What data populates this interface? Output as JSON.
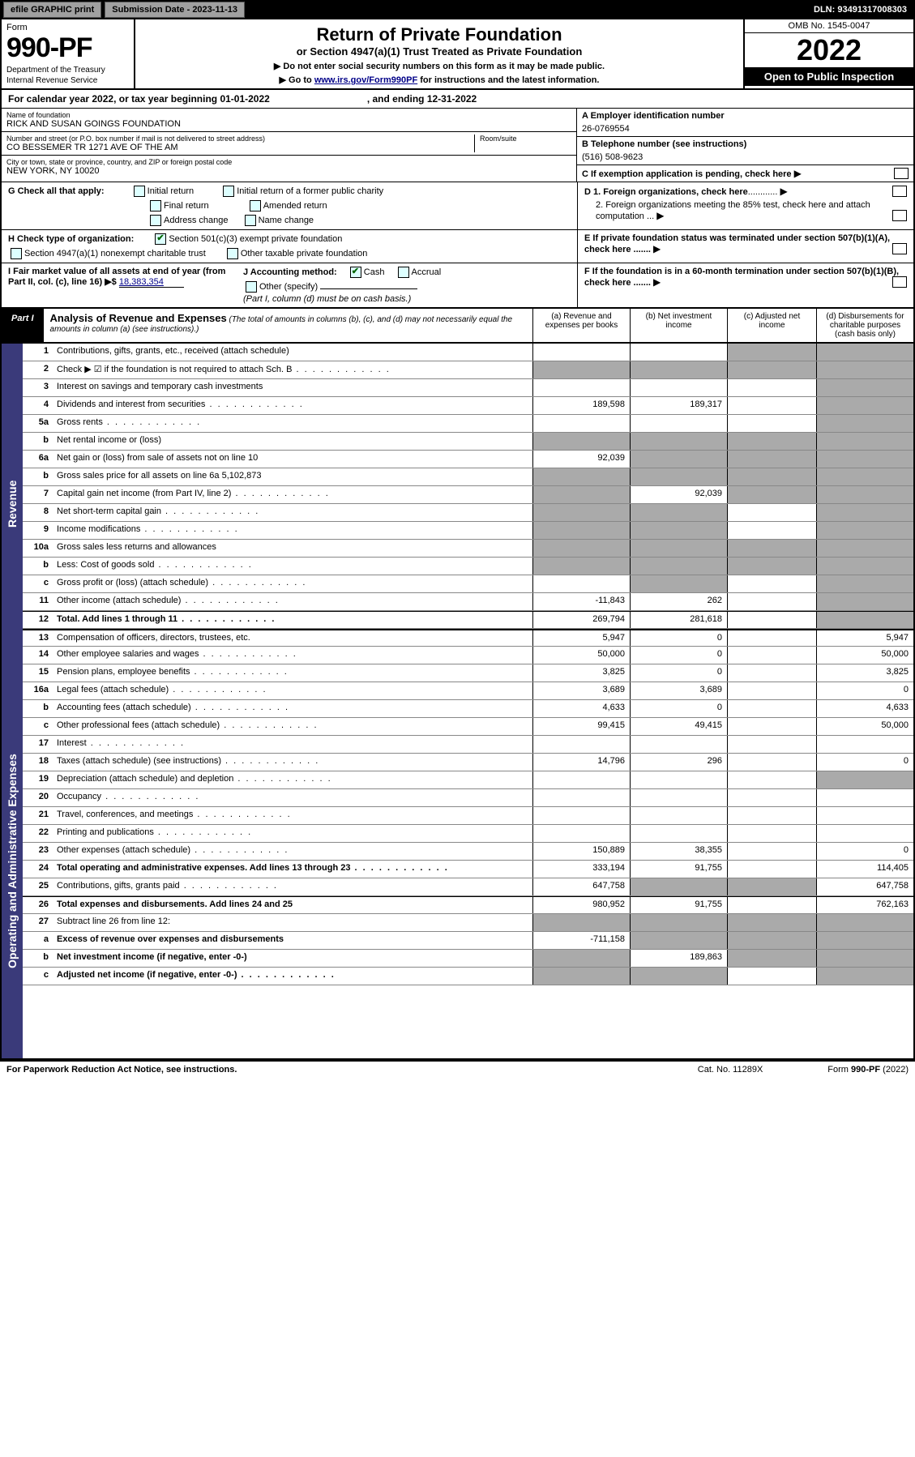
{
  "topbar": {
    "efile_btn": "efile GRAPHIC print",
    "submission_label": "Submission Date - 2023-11-13",
    "dln": "DLN: 93491317008303"
  },
  "header": {
    "form_word": "Form",
    "form_number": "990-PF",
    "dept1": "Department of the Treasury",
    "dept2": "Internal Revenue Service",
    "title": "Return of Private Foundation",
    "subtitle": "or Section 4947(a)(1) Trust Treated as Private Foundation",
    "note1": "▶ Do not enter social security numbers on this form as it may be made public.",
    "note2_pre": "▶ Go to ",
    "note2_link": "www.irs.gov/Form990PF",
    "note2_post": " for instructions and the latest information.",
    "omb": "OMB No. 1545-0047",
    "year": "2022",
    "open": "Open to Public Inspection"
  },
  "cal_year": {
    "text": "For calendar year 2022, or tax year beginning 01-01-2022",
    "ending": ", and ending 12-31-2022"
  },
  "id_block": {
    "name_label": "Name of foundation",
    "name": "RICK AND SUSAN GOINGS FOUNDATION",
    "addr_label": "Number and street (or P.O. box number if mail is not delivered to street address)",
    "room_label": "Room/suite",
    "addr": "CO BESSEMER TR 1271 AVE OF THE AM",
    "city_label": "City or town, state or province, country, and ZIP or foreign postal code",
    "city": "NEW YORK, NY  10020",
    "a_label": "A Employer identification number",
    "a_val": "26-0769554",
    "b_label": "B Telephone number (see instructions)",
    "b_val": "(516) 508-9623",
    "c_label": "C If exemption application is pending, check here",
    "d1": "D 1. Foreign organizations, check here",
    "d2": "2. Foreign organizations meeting the 85% test, check here and attach computation ...",
    "e": "E  If private foundation status was terminated under section 507(b)(1)(A), check here .......",
    "f": "F  If the foundation is in a 60-month termination under section 507(b)(1)(B), check here ......."
  },
  "checks": {
    "g_label": "G Check all that apply:",
    "g_opts": [
      "Initial return",
      "Initial return of a former public charity",
      "Final return",
      "Amended return",
      "Address change",
      "Name change"
    ],
    "h_label": "H Check type of organization:",
    "h_opt1": "Section 501(c)(3) exempt private foundation",
    "h_opt2": "Section 4947(a)(1) nonexempt charitable trust",
    "h_opt3": "Other taxable private foundation",
    "i_label": "I Fair market value of all assets at end of year (from Part II, col. (c), line 16) ▶$ ",
    "i_val": "18,383,354",
    "j_label": "J Accounting method:",
    "j_cash": "Cash",
    "j_accrual": "Accrual",
    "j_other": "Other (specify)",
    "j_note": "(Part I, column (d) must be on cash basis.)"
  },
  "part1": {
    "label": "Part I",
    "title": "Analysis of Revenue and Expenses",
    "desc": " (The total of amounts in columns (b), (c), and (d) may not necessarily equal the amounts in column (a) (see instructions).)",
    "col_a": "(a)   Revenue and expenses per books",
    "col_b": "(b)   Net investment income",
    "col_c": "(c)   Adjusted net income",
    "col_d": "(d)   Disbursements for charitable purposes (cash basis only)"
  },
  "side_rev": "Revenue",
  "side_exp": "Operating and Administrative Expenses",
  "rows": [
    {
      "n": "1",
      "t": "Contributions, gifts, grants, etc., received (attach schedule)",
      "a": "",
      "b": "",
      "c": "s",
      "d": "s"
    },
    {
      "n": "2",
      "t": "Check ▶ ☑ if the foundation is not required to attach Sch. B",
      "a": "s",
      "b": "s",
      "c": "s",
      "d": "s",
      "dots": true
    },
    {
      "n": "3",
      "t": "Interest on savings and temporary cash investments",
      "a": "",
      "b": "",
      "c": "",
      "d": "s"
    },
    {
      "n": "4",
      "t": "Dividends and interest from securities",
      "a": "189,598",
      "b": "189,317",
      "c": "",
      "d": "s",
      "dots": true
    },
    {
      "n": "5a",
      "t": "Gross rents",
      "a": "",
      "b": "",
      "c": "",
      "d": "s",
      "dots": true
    },
    {
      "n": "b",
      "t": "Net rental income or (loss)",
      "a": "s",
      "b": "s",
      "c": "s",
      "d": "s"
    },
    {
      "n": "6a",
      "t": "Net gain or (loss) from sale of assets not on line 10",
      "a": "92,039",
      "b": "s",
      "c": "s",
      "d": "s"
    },
    {
      "n": "b",
      "t": "Gross sales price for all assets on line 6a          5,102,873",
      "a": "s",
      "b": "s",
      "c": "s",
      "d": "s"
    },
    {
      "n": "7",
      "t": "Capital gain net income (from Part IV, line 2)",
      "a": "s",
      "b": "92,039",
      "c": "s",
      "d": "s",
      "dots": true
    },
    {
      "n": "8",
      "t": "Net short-term capital gain",
      "a": "s",
      "b": "s",
      "c": "",
      "d": "s",
      "dots": true
    },
    {
      "n": "9",
      "t": "Income modifications",
      "a": "s",
      "b": "s",
      "c": "",
      "d": "s",
      "dots": true
    },
    {
      "n": "10a",
      "t": "Gross sales less returns and allowances",
      "a": "s",
      "b": "s",
      "c": "s",
      "d": "s"
    },
    {
      "n": "b",
      "t": "Less: Cost of goods sold",
      "a": "s",
      "b": "s",
      "c": "s",
      "d": "s",
      "dots": true
    },
    {
      "n": "c",
      "t": "Gross profit or (loss) (attach schedule)",
      "a": "",
      "b": "s",
      "c": "",
      "d": "s",
      "dots": true
    },
    {
      "n": "11",
      "t": "Other income (attach schedule)",
      "a": "-11,843",
      "b": "262",
      "c": "",
      "d": "s",
      "dots": true
    },
    {
      "n": "12",
      "t": "Total. Add lines 1 through 11",
      "a": "269,794",
      "b": "281,618",
      "c": "",
      "d": "s",
      "dots": true,
      "bold": true
    },
    {
      "n": "13",
      "t": "Compensation of officers, directors, trustees, etc.",
      "a": "5,947",
      "b": "0",
      "c": "",
      "d": "5,947"
    },
    {
      "n": "14",
      "t": "Other employee salaries and wages",
      "a": "50,000",
      "b": "0",
      "c": "",
      "d": "50,000",
      "dots": true
    },
    {
      "n": "15",
      "t": "Pension plans, employee benefits",
      "a": "3,825",
      "b": "0",
      "c": "",
      "d": "3,825",
      "dots": true
    },
    {
      "n": "16a",
      "t": "Legal fees (attach schedule)",
      "a": "3,689",
      "b": "3,689",
      "c": "",
      "d": "0",
      "dots": true
    },
    {
      "n": "b",
      "t": "Accounting fees (attach schedule)",
      "a": "4,633",
      "b": "0",
      "c": "",
      "d": "4,633",
      "dots": true
    },
    {
      "n": "c",
      "t": "Other professional fees (attach schedule)",
      "a": "99,415",
      "b": "49,415",
      "c": "",
      "d": "50,000",
      "dots": true
    },
    {
      "n": "17",
      "t": "Interest",
      "a": "",
      "b": "",
      "c": "",
      "d": "",
      "dots": true
    },
    {
      "n": "18",
      "t": "Taxes (attach schedule) (see instructions)",
      "a": "14,796",
      "b": "296",
      "c": "",
      "d": "0",
      "dots": true
    },
    {
      "n": "19",
      "t": "Depreciation (attach schedule) and depletion",
      "a": "",
      "b": "",
      "c": "",
      "d": "s",
      "dots": true
    },
    {
      "n": "20",
      "t": "Occupancy",
      "a": "",
      "b": "",
      "c": "",
      "d": "",
      "dots": true
    },
    {
      "n": "21",
      "t": "Travel, conferences, and meetings",
      "a": "",
      "b": "",
      "c": "",
      "d": "",
      "dots": true
    },
    {
      "n": "22",
      "t": "Printing and publications",
      "a": "",
      "b": "",
      "c": "",
      "d": "",
      "dots": true
    },
    {
      "n": "23",
      "t": "Other expenses (attach schedule)",
      "a": "150,889",
      "b": "38,355",
      "c": "",
      "d": "0",
      "dots": true
    },
    {
      "n": "24",
      "t": "Total operating and administrative expenses. Add lines 13 through 23",
      "a": "333,194",
      "b": "91,755",
      "c": "",
      "d": "114,405",
      "bold": true,
      "dots": true
    },
    {
      "n": "25",
      "t": "Contributions, gifts, grants paid",
      "a": "647,758",
      "b": "s",
      "c": "s",
      "d": "647,758",
      "dots": true
    },
    {
      "n": "26",
      "t": "Total expenses and disbursements. Add lines 24 and 25",
      "a": "980,952",
      "b": "91,755",
      "c": "",
      "d": "762,163",
      "bold": true
    },
    {
      "n": "27",
      "t": "Subtract line 26 from line 12:",
      "a": "s",
      "b": "s",
      "c": "s",
      "d": "s"
    },
    {
      "n": "a",
      "t": "Excess of revenue over expenses and disbursements",
      "a": "-711,158",
      "b": "s",
      "c": "s",
      "d": "s",
      "bold": true
    },
    {
      "n": "b",
      "t": "Net investment income (if negative, enter -0-)",
      "a": "s",
      "b": "189,863",
      "c": "s",
      "d": "s",
      "bold": true
    },
    {
      "n": "c",
      "t": "Adjusted net income (if negative, enter -0-)",
      "a": "s",
      "b": "s",
      "c": "",
      "d": "s",
      "bold": true,
      "dots": true
    }
  ],
  "footer": {
    "left": "For Paperwork Reduction Act Notice, see instructions.",
    "mid": "Cat. No. 11289X",
    "right": "Form 990-PF (2022)"
  }
}
